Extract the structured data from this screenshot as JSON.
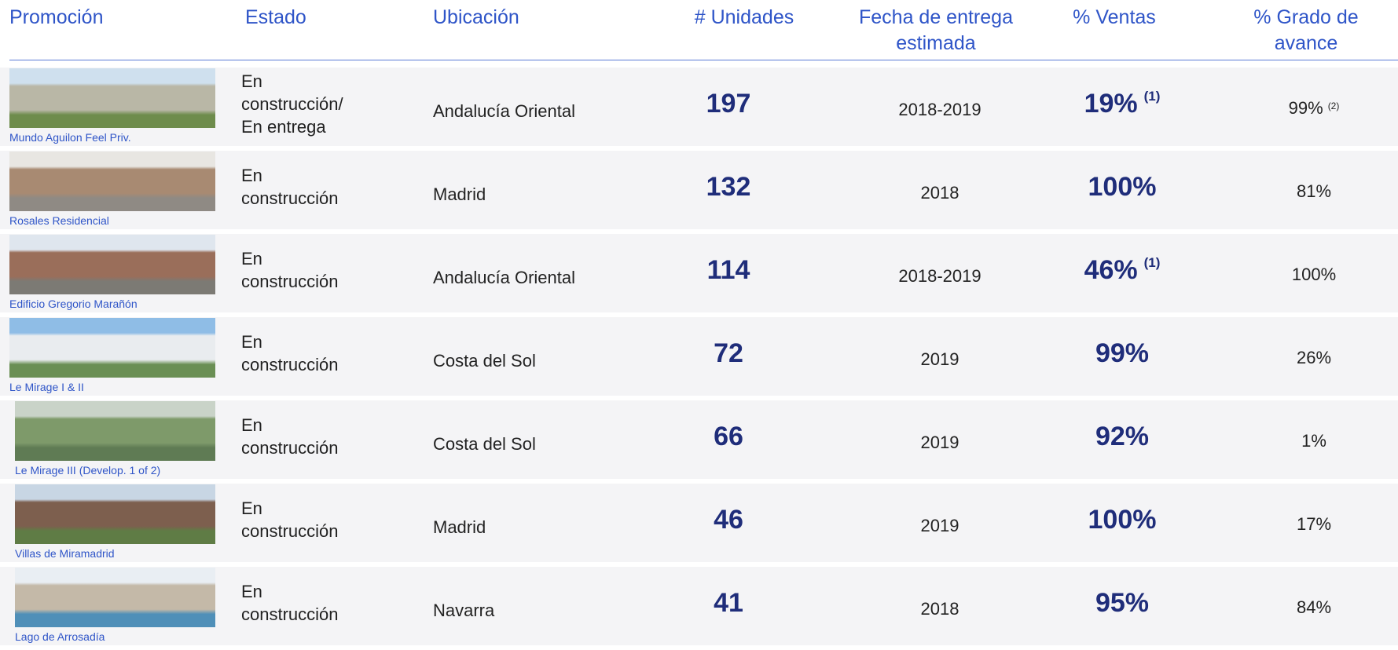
{
  "header": {
    "columns": [
      "Promoción",
      "Estado",
      "Ubicación",
      "# Unidades",
      "Fecha de entrega estimada",
      "% Ventas",
      "% Grado de avance"
    ]
  },
  "rows": [
    {
      "promocion": "Mundo Aguilon Feel Priv.",
      "estado": "En construcción/ En entrega",
      "ubicacion": "Andalucía Oriental",
      "unidades": "197",
      "fecha": "2018-2019",
      "ventas": "19%",
      "ventas_nota": "(1)",
      "avance": "99%",
      "avance_nota": "(2)"
    },
    {
      "promocion": "Rosales Residencial",
      "estado": "En construcción",
      "ubicacion": "Madrid",
      "unidades": "132",
      "fecha": "2018",
      "ventas": "100%",
      "avance": "81%"
    },
    {
      "promocion": "Edificio Gregorio Marañón",
      "estado": "En construcción",
      "ubicacion": "Andalucía Oriental",
      "unidades": "114",
      "fecha": "2018-2019",
      "ventas": "46%",
      "ventas_nota": "(1)",
      "avance": "100%"
    },
    {
      "promocion": "Le Mirage I & II",
      "estado": "En construcción",
      "ubicacion": "Costa del Sol",
      "unidades": "72",
      "fecha": "2019",
      "ventas": "99%",
      "avance": "26%"
    },
    {
      "promocion": "Le Mirage III (Develop. 1 of 2)",
      "estado": "En construcción",
      "ubicacion": "Costa del Sol",
      "unidades": "66",
      "fecha": "2019",
      "ventas": "92%",
      "avance": "1%"
    },
    {
      "promocion": "Villas de Miramadrid",
      "estado": "En construcción",
      "ubicacion": "Madrid",
      "unidades": "46",
      "fecha": "2019",
      "ventas": "100%",
      "avance": "17%"
    },
    {
      "promocion": "Lago de Arrosadía",
      "estado": "En construcción",
      "ubicacion": "Navarra",
      "unidades": "41",
      "fecha": "2018",
      "ventas": "95%",
      "avance": "84%"
    }
  ]
}
